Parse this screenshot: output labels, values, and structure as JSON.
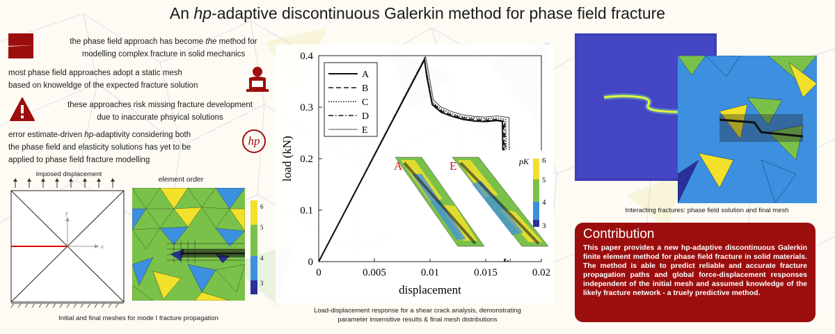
{
  "title": {
    "prefix": "An ",
    "hp": "hp",
    "suffix": "-adaptive discontinuous Galerkin method for phase field fracture"
  },
  "points": [
    {
      "text_a": "the phase field approach has become ",
      "text_em": "the",
      "text_b": " method for",
      "line2": "modelling complex fracture in solid mechanics"
    },
    {
      "line1": "most phase field approaches adopt a static mesh",
      "line2": "based on knoweldge of the expected fracture solution"
    },
    {
      "line1": "these approaches risk missing fracture development",
      "line2": "due to inaccurate phsyical solutions"
    },
    {
      "line1_a": "error estimate-driven ",
      "line1_em": "hp",
      "line1_b": "-adaptivity considering both",
      "line2": "the phase field and elasticity solutions has yet to be",
      "line3": "applied to phase field fracture modelling"
    }
  ],
  "hp_logo": "hp",
  "mesh_panel": {
    "imposed_label": "imposed displacement",
    "order_label": "element order",
    "x_axis": "x",
    "y_axis": "y",
    "colorbar_ticks": [
      "6",
      "5",
      "4",
      "3"
    ],
    "caption": "Initial and final meshes for mode I fracture propagation"
  },
  "chart_data": {
    "type": "line",
    "xlabel": "displacement",
    "ylabel": "load (kN)",
    "xlim": [
      0,
      0.02
    ],
    "ylim": [
      0,
      0.4
    ],
    "x_ticks": [
      "0",
      "0.005",
      "0.01",
      "0.015",
      "0.02"
    ],
    "y_ticks": [
      "0",
      "0.1",
      "0.2",
      "0.3",
      "0.4"
    ],
    "legend_position": "top-left",
    "series": [
      {
        "name": "A",
        "x": [
          0,
          0.0095,
          0.0097,
          0.0102,
          0.011,
          0.012,
          0.013,
          0.014,
          0.015,
          0.016,
          0.0165,
          0.0167
        ],
        "y": [
          0,
          0.392,
          0.36,
          0.305,
          0.29,
          0.282,
          0.276,
          0.273,
          0.272,
          0.274,
          0.272,
          0
        ]
      },
      {
        "name": "B",
        "x": [
          0,
          0.0095,
          0.0097,
          0.0102,
          0.011,
          0.012,
          0.013,
          0.014,
          0.015,
          0.016,
          0.0166,
          0.0168
        ],
        "y": [
          0,
          0.393,
          0.365,
          0.308,
          0.293,
          0.284,
          0.279,
          0.276,
          0.275,
          0.276,
          0.273,
          0
        ]
      },
      {
        "name": "C",
        "x": [
          0,
          0.0095,
          0.0097,
          0.0102,
          0.011,
          0.012,
          0.013,
          0.014,
          0.015,
          0.016,
          0.0168,
          0.017
        ],
        "y": [
          0,
          0.395,
          0.37,
          0.31,
          0.296,
          0.287,
          0.281,
          0.279,
          0.278,
          0.279,
          0.276,
          0
        ]
      },
      {
        "name": "D",
        "x": [
          0,
          0.0095,
          0.0097,
          0.0102,
          0.011,
          0.012,
          0.013,
          0.014,
          0.015,
          0.016,
          0.0167,
          0.0169
        ],
        "y": [
          0,
          0.394,
          0.362,
          0.306,
          0.291,
          0.283,
          0.277,
          0.274,
          0.273,
          0.275,
          0.273,
          0
        ]
      },
      {
        "name": "E",
        "x": [
          0,
          0.0096,
          0.0098,
          0.0103,
          0.011,
          0.012,
          0.013,
          0.014,
          0.015,
          0.016,
          0.0171,
          0.0172
        ],
        "y": [
          0,
          0.398,
          0.376,
          0.314,
          0.3,
          0.291,
          0.285,
          0.282,
          0.281,
          0.283,
          0.28,
          0
        ]
      }
    ],
    "inset_labels": [
      "A",
      "E"
    ],
    "inset_colorbar_label": "pK",
    "inset_colorbar_ticks": [
      "6",
      "5",
      "4",
      "3"
    ]
  },
  "chart_caption": {
    "line1": "Load-displacement response for a shear crack analysis, demonstrating",
    "line2": "parameter insensitive results & final mesh distributions"
  },
  "right_caption": "Interacting fractures: phase field solution and final mesh",
  "contribution": {
    "heading": "Contribution",
    "body": "This paper provides a new hp-adaptive discontinuous Galerkin finite element method for phase field fracture in solid materials.  The method is able to predict reliable and accurate fracture propagation paths and global force-displacement responses independent of the initial mesh and assumed knowledge of the likely fracture network - a truely predictive method."
  },
  "colors": {
    "accent": "#9c0e0e",
    "yellow": "#f2e02a",
    "green": "#7ac14a",
    "blue": "#3d8fe0",
    "navy": "#2a2f9a",
    "field_bg": "#3f3fb8"
  }
}
